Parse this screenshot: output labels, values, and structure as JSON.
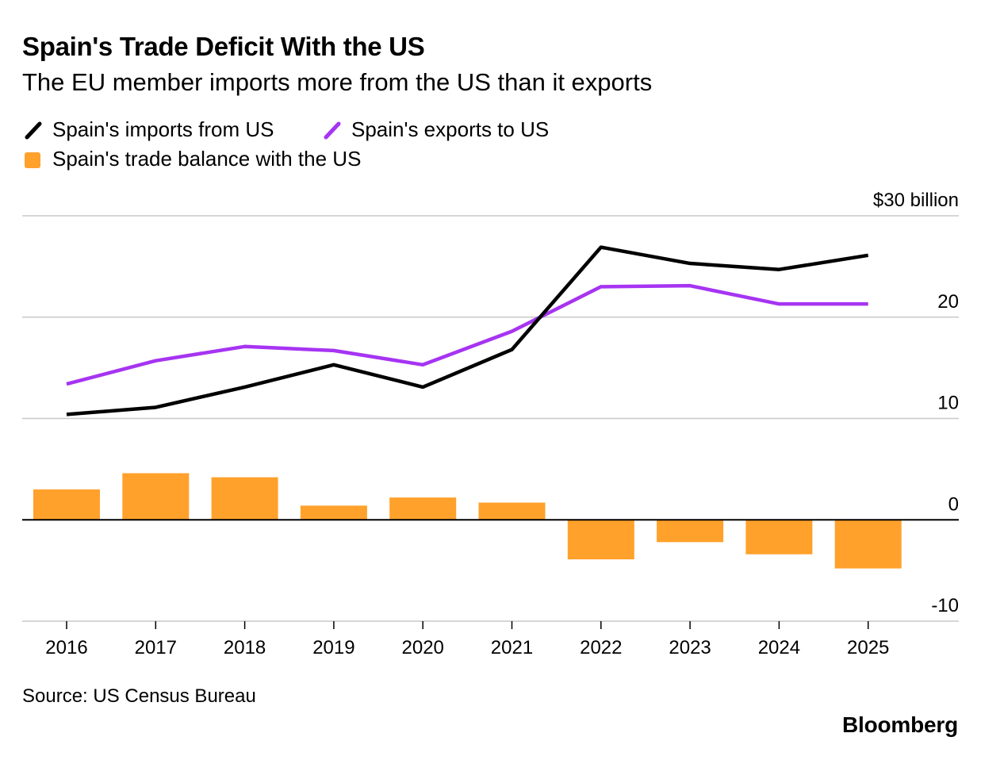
{
  "title": "Spain's Trade Deficit With the US",
  "subtitle": "The EU member imports more from the US than it exports",
  "legend": [
    {
      "label": "Spain's imports from US",
      "color": "#000000",
      "kind": "line"
    },
    {
      "label": "Spain's exports to US",
      "color": "#a634f2",
      "kind": "line"
    },
    {
      "label": "Spain's trade balance with the US",
      "color": "#ffa12b",
      "kind": "bar"
    }
  ],
  "source": "Source: US Census Bureau",
  "brand": "Bloomberg",
  "chart_data": {
    "type": "line+bar",
    "categories": [
      "2016",
      "2017",
      "2018",
      "2019",
      "2020",
      "2021",
      "2022",
      "2023",
      "2024",
      "2025"
    ],
    "series": [
      {
        "name": "Spain's imports from US",
        "type": "line",
        "color": "#000000",
        "values": [
          10.4,
          11.1,
          13.1,
          15.3,
          13.1,
          16.8,
          26.9,
          25.3,
          24.7,
          26.1
        ]
      },
      {
        "name": "Spain's exports to US",
        "type": "line",
        "color": "#a634f2",
        "values": [
          13.4,
          15.7,
          17.1,
          16.7,
          15.3,
          18.6,
          23.0,
          23.1,
          21.3,
          21.3
        ]
      },
      {
        "name": "Spain's trade balance with the US",
        "type": "bar",
        "color": "#ffa12b",
        "values": [
          3.0,
          4.6,
          4.2,
          1.4,
          2.2,
          1.7,
          -3.9,
          -2.2,
          -3.4,
          -4.8
        ]
      }
    ],
    "yticks": [
      30,
      20,
      10,
      0,
      -10
    ],
    "ytick_labels": [
      "$30 billion",
      "20",
      "10",
      "0",
      "-10"
    ],
    "ylim": [
      -10,
      30
    ],
    "xlabel": "",
    "ylabel": "",
    "grid": true
  }
}
